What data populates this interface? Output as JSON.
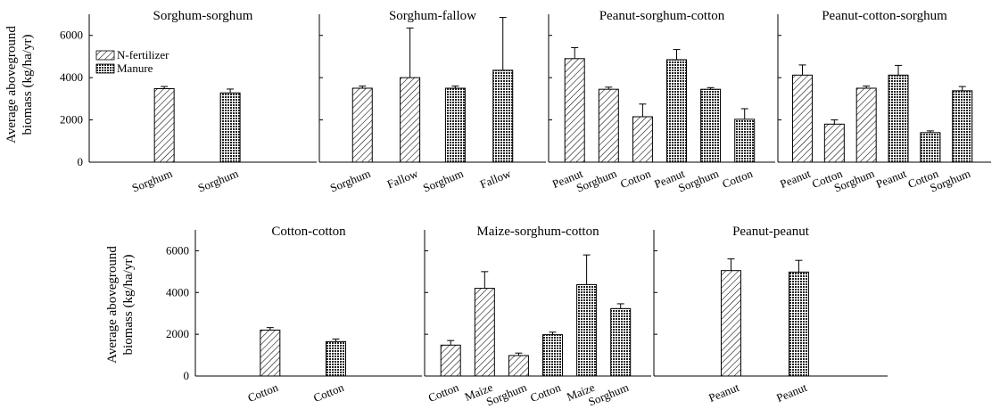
{
  "y_axis_label": [
    "Average aboveground",
    "biomass (kg/ha/yr)"
  ],
  "legend": [
    {
      "name": "N-fertilizer",
      "pattern": "hatch"
    },
    {
      "name": "Manure",
      "pattern": "cross"
    }
  ],
  "colors": {
    "bar_stroke": "#000000",
    "axis": "#000000",
    "background": "#ffffff"
  },
  "chart_data": [
    {
      "type": "bar",
      "title": "Sorghum-sorghum",
      "ylim": [
        0,
        7000
      ],
      "yticks": [
        0,
        2000,
        4000,
        6000
      ],
      "grid": false,
      "legend": "top-left",
      "bars": [
        {
          "label": "Sorghum",
          "value": 3480,
          "error": 100,
          "series": "N-fertilizer"
        },
        {
          "label": "Sorghum",
          "value": 3280,
          "error": 180,
          "series": "Manure"
        }
      ]
    },
    {
      "type": "bar",
      "title": "Sorghum-fallow",
      "ylim": [
        0,
        7000
      ],
      "grid": false,
      "bars": [
        {
          "label": "Sorghum",
          "value": 3500,
          "error": 100,
          "series": "N-fertilizer"
        },
        {
          "label": "Fallow",
          "value": 4000,
          "error": 2350,
          "series": "N-fertilizer"
        },
        {
          "label": "Sorghum",
          "value": 3500,
          "error": 100,
          "series": "Manure"
        },
        {
          "label": "Fallow",
          "value": 4350,
          "error": 2500,
          "series": "Manure"
        }
      ]
    },
    {
      "type": "bar",
      "title": "Peanut-sorghum-cotton",
      "ylim": [
        0,
        7000
      ],
      "grid": false,
      "bars": [
        {
          "label": "Peanut",
          "value": 4900,
          "error": 520,
          "series": "N-fertilizer"
        },
        {
          "label": "Sorghum",
          "value": 3450,
          "error": 100,
          "series": "N-fertilizer"
        },
        {
          "label": "Cotton",
          "value": 2150,
          "error": 600,
          "series": "N-fertilizer"
        },
        {
          "label": "Peanut",
          "value": 4850,
          "error": 480,
          "series": "Manure"
        },
        {
          "label": "Sorghum",
          "value": 3450,
          "error": 80,
          "series": "Manure"
        },
        {
          "label": "Cotton",
          "value": 2030,
          "error": 500,
          "series": "Manure"
        }
      ]
    },
    {
      "type": "bar",
      "title": "Peanut-cotton-sorghum",
      "ylim": [
        0,
        7000
      ],
      "grid": false,
      "bars": [
        {
          "label": "Peanut",
          "value": 4120,
          "error": 480,
          "series": "N-fertilizer"
        },
        {
          "label": "Cotton",
          "value": 1800,
          "error": 200,
          "series": "N-fertilizer"
        },
        {
          "label": "Sorghum",
          "value": 3500,
          "error": 100,
          "series": "N-fertilizer"
        },
        {
          "label": "Peanut",
          "value": 4120,
          "error": 460,
          "series": "Manure"
        },
        {
          "label": "Cotton",
          "value": 1400,
          "error": 80,
          "series": "Manure"
        },
        {
          "label": "Sorghum",
          "value": 3380,
          "error": 200,
          "series": "Manure"
        }
      ]
    },
    {
      "type": "bar",
      "title": "Cotton-cotton",
      "ylim": [
        0,
        7000
      ],
      "yticks": [
        0,
        2000,
        4000,
        6000
      ],
      "grid": false,
      "bars": [
        {
          "label": "Cotton",
          "value": 2200,
          "error": 120,
          "series": "N-fertilizer"
        },
        {
          "label": "Cotton",
          "value": 1650,
          "error": 120,
          "series": "Manure"
        }
      ]
    },
    {
      "type": "bar",
      "title": "Maize-sorghum-cotton",
      "ylim": [
        0,
        7000
      ],
      "grid": false,
      "bars": [
        {
          "label": "Cotton",
          "value": 1480,
          "error": 220,
          "series": "N-fertilizer"
        },
        {
          "label": "Maize",
          "value": 4200,
          "error": 800,
          "series": "N-fertilizer"
        },
        {
          "label": "Sorghum",
          "value": 980,
          "error": 120,
          "series": "N-fertilizer"
        },
        {
          "label": "Cotton",
          "value": 1980,
          "error": 120,
          "series": "Manure"
        },
        {
          "label": "Maize",
          "value": 4380,
          "error": 1420,
          "series": "Manure"
        },
        {
          "label": "Sorghum",
          "value": 3230,
          "error": 230,
          "series": "Manure"
        }
      ]
    },
    {
      "type": "bar",
      "title": "Peanut-peanut",
      "ylim": [
        0,
        7000
      ],
      "grid": false,
      "bars": [
        {
          "label": "Peanut",
          "value": 5050,
          "error": 560,
          "series": "N-fertilizer"
        },
        {
          "label": "Peanut",
          "value": 4980,
          "error": 560,
          "series": "Manure"
        }
      ]
    }
  ]
}
